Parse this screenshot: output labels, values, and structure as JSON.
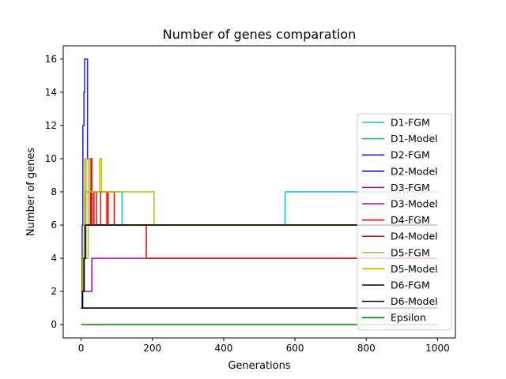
{
  "chart_data": {
    "type": "line",
    "title": "Number of genes comparation",
    "xlabel": "Generations",
    "ylabel": "Number of genes",
    "xlim": [
      -50,
      1050
    ],
    "ylim": [
      -0.8,
      16.8
    ],
    "xticks": [
      0,
      200,
      400,
      600,
      800,
      1000
    ],
    "yticks": [
      0,
      2,
      4,
      6,
      8,
      10,
      12,
      14,
      16
    ],
    "legend_position": "right",
    "series": [
      {
        "name": "D1-FGM",
        "color": "#17becf",
        "x": [
          0,
          3,
          3,
          6,
          6,
          9,
          9,
          12,
          12,
          16,
          16,
          115,
          115,
          572,
          572,
          1000
        ],
        "y": [
          1,
          1,
          2,
          2,
          4,
          4,
          6,
          6,
          8,
          8,
          8,
          8,
          6,
          6,
          8,
          8
        ]
      },
      {
        "name": "D1-Model",
        "color": "#00bfbf",
        "x": [
          0,
          4,
          4,
          7,
          7,
          10,
          10,
          16,
          16,
          1000
        ],
        "y": [
          1,
          1,
          2,
          2,
          4,
          4,
          6,
          6,
          6,
          6
        ]
      },
      {
        "name": "D2-FGM",
        "color": "#1f1fff",
        "x": [
          0,
          3,
          3,
          5,
          5,
          8,
          8,
          10,
          10,
          13,
          13,
          18,
          18,
          27,
          27,
          31,
          31,
          1000
        ],
        "y": [
          1,
          1,
          6,
          6,
          12,
          12,
          14,
          14,
          16,
          16,
          16,
          16,
          10,
          10,
          6,
          6,
          6,
          6
        ]
      },
      {
        "name": "D2-Model",
        "color": "#0000cc",
        "x": [
          0,
          3,
          3,
          6,
          6,
          10,
          10,
          14,
          14,
          1000
        ],
        "y": [
          1,
          1,
          2,
          2,
          4,
          4,
          6,
          6,
          6,
          6
        ]
      },
      {
        "name": "D3-FGM",
        "color": "#bf00bf",
        "x": [
          0,
          3,
          3,
          14,
          14,
          30,
          30,
          1000
        ],
        "y": [
          1,
          1,
          2,
          2,
          2,
          2,
          4,
          4
        ]
      },
      {
        "name": "D3-Model",
        "color": "#b000b0",
        "x": [
          0,
          1000
        ],
        "y": [
          1,
          1
        ]
      },
      {
        "name": "D4-FGM",
        "color": "#ff0000",
        "x": [
          0,
          5,
          5,
          9,
          9,
          12,
          12,
          26,
          26,
          30,
          30,
          36,
          36,
          43,
          43,
          55,
          55,
          72,
          72,
          76,
          76,
          93,
          93,
          183,
          183,
          1000
        ],
        "y": [
          1,
          1,
          2,
          2,
          4,
          4,
          6,
          6,
          10,
          10,
          6,
          6,
          8,
          8,
          6,
          6,
          8,
          8,
          6,
          6,
          8,
          8,
          6,
          6,
          4,
          4
        ]
      },
      {
        "name": "D4-Model",
        "color": "#e00000",
        "x": [
          0,
          5,
          5,
          9,
          9,
          13,
          13,
          1000
        ],
        "y": [
          1,
          1,
          2,
          2,
          4,
          4,
          6,
          6
        ]
      },
      {
        "name": "D5-FGM",
        "color": "#bfbf00",
        "x": [
          0,
          5,
          5,
          10,
          10,
          14,
          14,
          20,
          20,
          25,
          25,
          32,
          32,
          52,
          52,
          57,
          57,
          205,
          205,
          1000
        ],
        "y": [
          1,
          1,
          4,
          4,
          10,
          10,
          4,
          4,
          10,
          10,
          8,
          8,
          8,
          8,
          10,
          10,
          8,
          8,
          6,
          6
        ]
      },
      {
        "name": "D5-Model",
        "color": "#b5b500",
        "x": [
          0,
          4,
          4,
          8,
          8,
          12,
          12,
          16,
          16,
          1000
        ],
        "y": [
          1,
          1,
          2,
          2,
          4,
          4,
          6,
          6,
          6,
          6
        ]
      },
      {
        "name": "D6-FGM",
        "color": "#000000",
        "x": [
          0,
          4,
          4,
          8,
          8,
          12,
          12,
          1000
        ],
        "y": [
          1,
          1,
          2,
          2,
          4,
          4,
          6,
          6
        ]
      },
      {
        "name": "D6-Model",
        "color": "#000000",
        "x": [
          0,
          1000
        ],
        "y": [
          1,
          1
        ]
      },
      {
        "name": "Epsilon",
        "color": "#008000",
        "x": [
          0,
          1000
        ],
        "y": [
          0,
          0
        ]
      }
    ]
  }
}
